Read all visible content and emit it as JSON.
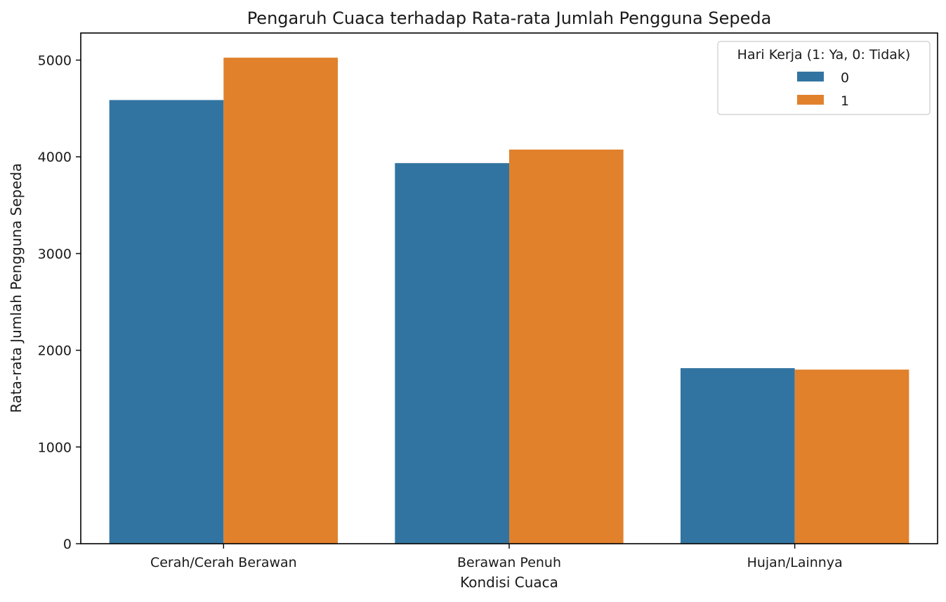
{
  "chart_data": {
    "type": "bar",
    "title": "Pengaruh Cuaca terhadap Rata-rata Jumlah Pengguna Sepeda",
    "xlabel": "Kondisi Cuaca",
    "ylabel": "Rata-rata Jumlah Pengguna Sepeda",
    "categories": [
      "Cerah/Cerah Berawan",
      "Berawan Penuh",
      "Hujan/Lainnya"
    ],
    "series": [
      {
        "name": "0",
        "color": "#3274a1",
        "values": [
          4587,
          3935,
          1815
        ]
      },
      {
        "name": "1",
        "color": "#e1812c",
        "values": [
          5025,
          4075,
          1800
        ]
      }
    ],
    "ylim": [
      0,
      5280
    ],
    "yticks": [
      0,
      1000,
      2000,
      3000,
      4000,
      5000
    ],
    "grid": false,
    "legend": {
      "title": "Hari Kerja (1: Ya, 0: Tidak)",
      "position": "top-right"
    }
  }
}
